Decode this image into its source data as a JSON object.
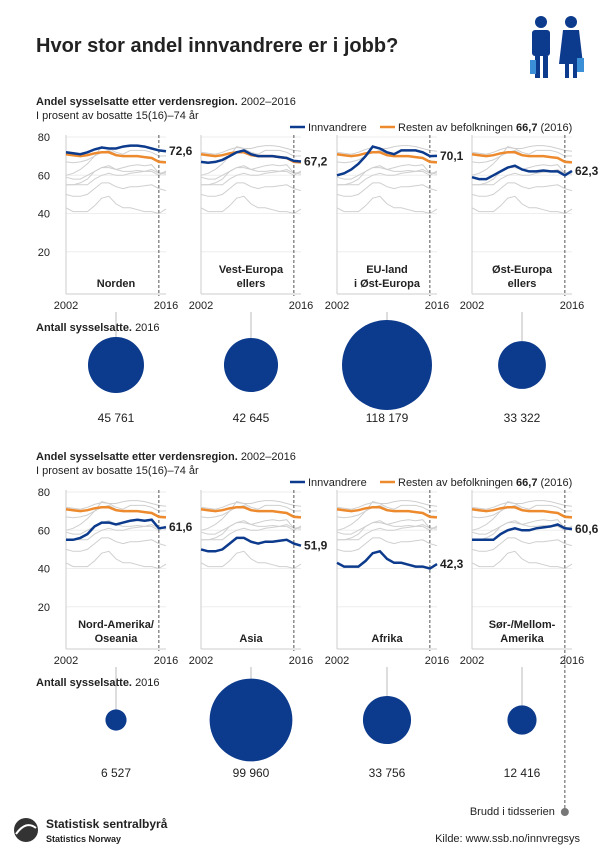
{
  "header": {
    "title": "Hvor stor andel innvandrere er i jobb?"
  },
  "x": [
    2002,
    2003,
    2004,
    2005,
    2006,
    2007,
    2008,
    2009,
    2010,
    2011,
    2012,
    2013,
    2014,
    2015,
    2016
  ],
  "xticks": [
    2002,
    2016
  ],
  "ylim": [
    0,
    80
  ],
  "yticks": [
    20,
    40,
    60,
    80
  ],
  "break_year": 2015,
  "break_label": "Brudd i tidsserien",
  "rest": {
    "color": "#ed8a2e",
    "values": [
      71,
      70.5,
      70,
      70.5,
      71.5,
      72,
      72,
      70.5,
      70,
      70,
      70,
      69.5,
      69,
      67,
      66.7
    ]
  },
  "immigrant_color": "#0c3a8c",
  "sections": [
    {
      "subtitle_bold": "Andel sysselsatte etter verdensregion.",
      "subtitle_years": "2002–2016",
      "subtitle2": "I prosent av bosatte 15(16)–74 år",
      "legend": {
        "immigrants": "Innvandrere",
        "rest": "Resten av befolkningen",
        "rest_value": "66,7",
        "rest_year": "(2016)"
      },
      "count_bold": "Antall sysselsatte.",
      "count_year": "2016",
      "panels": [
        {
          "name": [
            "Norden"
          ],
          "values": [
            72,
            71.5,
            71,
            72,
            73.5,
            74.5,
            74,
            74,
            75,
            75.5,
            75.5,
            75,
            74,
            73,
            72.6
          ],
          "end_label": "72,6",
          "count": 45761,
          "count_label": "45 761"
        },
        {
          "name": [
            "Vest-Europa",
            "ellers"
          ],
          "values": [
            67,
            66.5,
            67,
            68,
            70,
            72,
            73,
            71,
            70,
            70,
            70,
            69.5,
            69,
            67.5,
            67.2
          ],
          "end_label": "67,2",
          "count": 42645,
          "count_label": "42 645"
        },
        {
          "name": [
            "EU-land",
            "i Øst-Europa"
          ],
          "values": [
            60,
            61,
            63,
            66,
            70,
            75,
            74,
            72,
            71,
            73,
            73,
            73,
            72,
            70,
            70.1
          ],
          "end_label": "70,1",
          "count": 118179,
          "count_label": "118 179"
        },
        {
          "name": [
            "Øst-Europa",
            "ellers"
          ],
          "values": [
            59,
            58,
            58,
            60,
            62,
            64,
            65,
            63,
            62,
            62,
            62.5,
            62,
            62,
            60,
            62.3
          ],
          "end_label": "62,3",
          "count": 33322,
          "count_label": "33 322"
        }
      ]
    },
    {
      "subtitle_bold": "Andel sysselsatte etter verdensregion.",
      "subtitle_years": "2002–2016",
      "subtitle2": "I prosent av bosatte 15(16)–74 år",
      "legend": {
        "immigrants": "Innvandrere",
        "rest": "Resten av befolkningen",
        "rest_value": "66,7",
        "rest_year": "(2016)"
      },
      "count_bold": "Antall sysselsatte.",
      "count_year": "2016",
      "panels": [
        {
          "name": [
            "Nord-Amerika/",
            "Oseania"
          ],
          "values": [
            55,
            55,
            56,
            58,
            62,
            64,
            64,
            63,
            64,
            65,
            65.5,
            65,
            65.5,
            61,
            61.6
          ],
          "end_label": "61,6",
          "count": 6527,
          "count_label": "6 527"
        },
        {
          "name": [
            "Asia"
          ],
          "values": [
            50,
            49,
            49,
            50,
            53,
            56,
            56,
            54,
            53,
            54,
            54,
            54.5,
            55,
            53,
            51.9
          ],
          "end_label": "51,9",
          "count": 99960,
          "count_label": "99 960"
        },
        {
          "name": [
            "Afrika"
          ],
          "values": [
            43,
            41,
            41,
            41,
            44,
            48,
            49,
            45,
            43,
            43,
            42,
            41,
            41,
            40,
            42.3
          ],
          "end_label": "42,3",
          "count": 33756,
          "count_label": "33 756"
        },
        {
          "name": [
            "Sør-/Mellom-",
            "Amerika"
          ],
          "values": [
            55,
            55,
            55,
            55,
            58,
            60,
            61,
            60,
            60,
            61,
            61.5,
            62,
            63,
            61,
            60.6
          ],
          "end_label": "60,6",
          "count": 12416,
          "count_label": "12 416"
        }
      ]
    }
  ],
  "footer": {
    "org": "Statistisk sentralbyrå",
    "org_en": "Statistics Norway",
    "source": "Kilde: www.ssb.no/innvregsys"
  }
}
